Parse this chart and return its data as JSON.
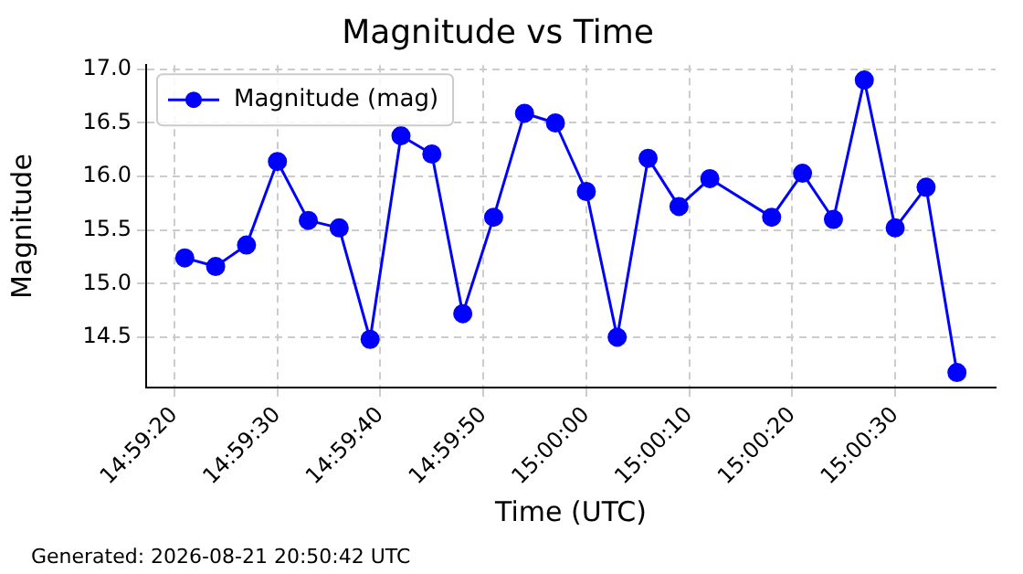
{
  "chart_data": {
    "type": "line",
    "title": "Magnitude vs Time",
    "xlabel": "Time (UTC)",
    "ylabel": "Magnitude",
    "x": [
      14.989167,
      14.99,
      14.990833,
      14.991667,
      14.9925,
      14.993333,
      14.994167,
      14.995,
      14.995833,
      14.996667,
      14.9975,
      14.998333,
      14.999167,
      15.0,
      15.000833,
      15.001667,
      15.0025,
      15.003333,
      15.005,
      15.005833,
      15.006667,
      15.0075,
      15.008333,
      15.009167,
      15.01
    ],
    "series": [
      {
        "name": "Magnitude (mag)",
        "color": "#0000ff",
        "values": [
          15.24,
          15.16,
          15.36,
          16.14,
          15.59,
          15.52,
          14.48,
          16.38,
          16.21,
          14.72,
          15.62,
          16.59,
          16.5,
          15.86,
          14.5,
          16.17,
          15.72,
          15.98,
          15.62,
          16.03,
          15.6,
          16.9,
          15.52,
          15.9,
          14.17
        ]
      }
    ],
    "xlim": [
      14.988125,
      15.011042
    ],
    "xticks": [
      {
        "value": 14.988889,
        "label": "14:59:20"
      },
      {
        "value": 14.991667,
        "label": "14:59:30"
      },
      {
        "value": 14.994444,
        "label": "14:59:40"
      },
      {
        "value": 14.997222,
        "label": "14:59:50"
      },
      {
        "value": 15.0,
        "label": "15:00:00"
      },
      {
        "value": 15.002778,
        "label": "15:00:10"
      },
      {
        "value": 15.005556,
        "label": "15:00:20"
      },
      {
        "value": 15.008333,
        "label": "15:00:30"
      }
    ],
    "ylim": [
      14.03,
      17.04
    ],
    "yticks": [
      {
        "value": 14.5,
        "label": "14.5"
      },
      {
        "value": 15,
        "label": "15.0"
      },
      {
        "value": 15.5,
        "label": "15.5"
      },
      {
        "value": 16,
        "label": "16.0"
      },
      {
        "value": 16.5,
        "label": "16.5"
      },
      {
        "value": 17,
        "label": "17.0"
      }
    ],
    "grid": true,
    "legend": "top left",
    "marker": "circle",
    "line_style": "solid",
    "annotations": [
      "Generated: 2026-08-21 20:50:42 UTC"
    ]
  }
}
